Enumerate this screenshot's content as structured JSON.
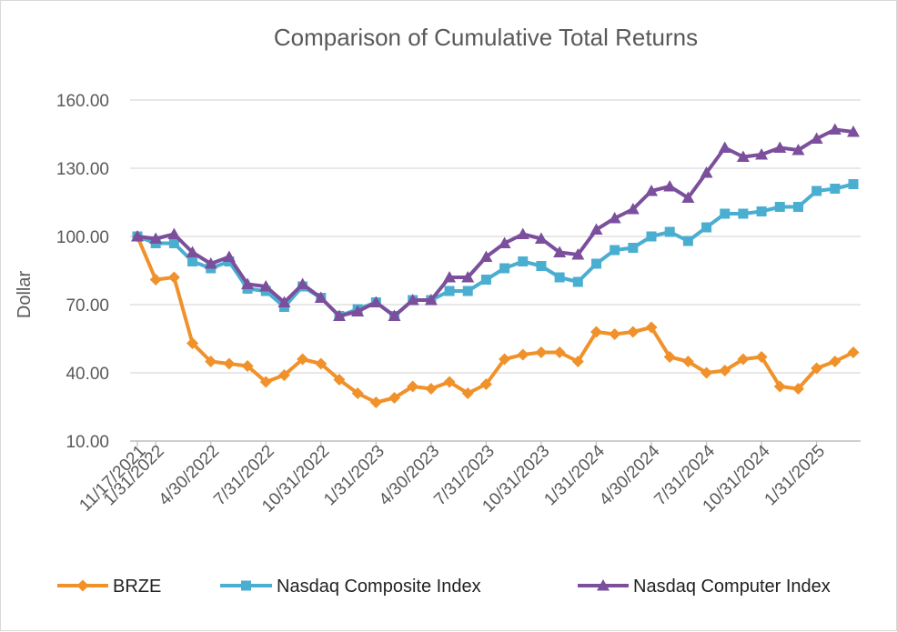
{
  "chart_data": {
    "type": "line",
    "title": "Comparison of Cumulative Total Returns",
    "xlabel": "",
    "ylabel": "Dollar",
    "ylim": [
      10,
      160
    ],
    "yticks": [
      "10.00",
      "40.00",
      "70.00",
      "100.00",
      "130.00",
      "160.00"
    ],
    "ytick_values": [
      10,
      40,
      70,
      100,
      130,
      160
    ],
    "xtick_labels": [
      "11/17/2021",
      "1/31/2022",
      "4/30/2022",
      "7/31/2022",
      "10/31/2022",
      "1/31/2023",
      "4/30/2023",
      "7/31/2023",
      "10/31/2023",
      "1/31/2024",
      "4/30/2024",
      "7/31/2024",
      "10/31/2024",
      "1/31/2025"
    ],
    "xtick_positions": [
      0,
      1,
      4,
      7,
      10,
      13,
      16,
      19,
      22,
      25,
      28,
      31,
      34,
      37
    ],
    "legend_position": "bottom",
    "series": [
      {
        "name": "BRZE",
        "color": "#f0912a",
        "marker": "diamond",
        "values": [
          100,
          81,
          82,
          53,
          45,
          44,
          43,
          36,
          39,
          46,
          44,
          37,
          31,
          27,
          29,
          34,
          33,
          36,
          31,
          35,
          46,
          48,
          49,
          49,
          45,
          58,
          57,
          58,
          60,
          47,
          45,
          40,
          41,
          46,
          47,
          34,
          33,
          42,
          45,
          49
        ]
      },
      {
        "name": "Nasdaq Composite Index",
        "color": "#4aaed0",
        "marker": "square",
        "values": [
          100,
          97,
          97,
          89,
          86,
          89,
          77,
          76,
          69,
          78,
          73,
          65,
          68,
          71,
          65,
          72,
          72,
          76,
          76,
          81,
          86,
          89,
          87,
          82,
          80,
          88,
          94,
          95,
          100,
          102,
          98,
          104,
          110,
          110,
          111,
          113,
          113,
          120,
          121,
          123
        ]
      },
      {
        "name": "Nasdaq Computer Index",
        "color": "#7b4f9c",
        "marker": "triangle",
        "values": [
          100,
          99,
          101,
          93,
          88,
          91,
          79,
          78,
          71,
          79,
          73,
          65,
          67,
          71,
          65,
          72,
          72,
          82,
          82,
          91,
          97,
          101,
          99,
          93,
          92,
          103,
          108,
          112,
          120,
          122,
          117,
          128,
          139,
          135,
          136,
          139,
          138,
          143,
          147,
          146
        ]
      }
    ]
  }
}
